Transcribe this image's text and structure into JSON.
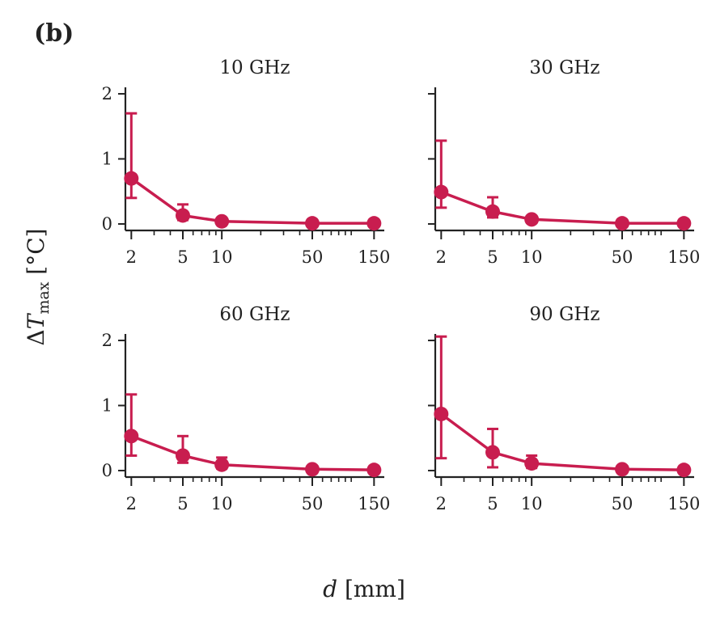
{
  "figure": {
    "panel_label": "(b)",
    "xlabel": "d [mm]",
    "ylabel": "ΔT_max [°C]",
    "color": "#c81d4f"
  },
  "chart_data": [
    {
      "type": "line",
      "title": "10 GHz",
      "xscale": "log",
      "x": [
        2,
        5,
        10,
        50,
        150
      ],
      "xticks": [
        "2",
        "5",
        "10",
        "50",
        "150"
      ],
      "yticks": [
        "0",
        "1",
        "2"
      ],
      "xlim": [
        1.8,
        180
      ],
      "ylim": [
        -0.1,
        2.1
      ],
      "y": [
        0.7,
        0.13,
        0.04,
        0.01,
        0.01
      ],
      "yerr_low": [
        0.4,
        0.06,
        0.02,
        0.005,
        0.005
      ],
      "yerr_high": [
        1.7,
        0.3,
        0.06,
        0.02,
        0.02
      ],
      "grid": false
    },
    {
      "type": "line",
      "title": "30 GHz",
      "xscale": "log",
      "x": [
        2,
        5,
        10,
        50,
        150
      ],
      "xticks": [
        "2",
        "5",
        "10",
        "50",
        "150"
      ],
      "yticks": [
        "0",
        "1",
        "2"
      ],
      "xlim": [
        1.8,
        180
      ],
      "ylim": [
        -0.1,
        2.1
      ],
      "y": [
        0.49,
        0.19,
        0.07,
        0.01,
        0.01
      ],
      "yerr_low": [
        0.25,
        0.1,
        0.03,
        0.005,
        0.005
      ],
      "yerr_high": [
        1.28,
        0.41,
        0.12,
        0.02,
        0.02
      ],
      "grid": false
    },
    {
      "type": "line",
      "title": "60 GHz",
      "xscale": "log",
      "x": [
        2,
        5,
        10,
        50,
        150
      ],
      "xticks": [
        "2",
        "5",
        "10",
        "50",
        "150"
      ],
      "yticks": [
        "0",
        "1",
        "2"
      ],
      "xlim": [
        1.8,
        180
      ],
      "ylim": [
        -0.1,
        2.1
      ],
      "y": [
        0.53,
        0.23,
        0.09,
        0.02,
        0.01
      ],
      "yerr_low": [
        0.23,
        0.12,
        0.03,
        0.005,
        0.005
      ],
      "yerr_high": [
        1.17,
        0.53,
        0.2,
        0.03,
        0.02
      ],
      "grid": false
    },
    {
      "type": "line",
      "title": "90 GHz",
      "xscale": "log",
      "x": [
        2,
        5,
        10,
        50,
        150
      ],
      "xticks": [
        "2",
        "5",
        "10",
        "50",
        "150"
      ],
      "yticks": [
        "0",
        "1",
        "2"
      ],
      "xlim": [
        1.8,
        180
      ],
      "ylim": [
        -0.1,
        2.1
      ],
      "y": [
        0.87,
        0.28,
        0.11,
        0.02,
        0.01
      ],
      "yerr_low": [
        0.19,
        0.05,
        0.04,
        0.005,
        0.005
      ],
      "yerr_high": [
        2.06,
        0.64,
        0.23,
        0.04,
        0.02
      ],
      "grid": false
    }
  ]
}
